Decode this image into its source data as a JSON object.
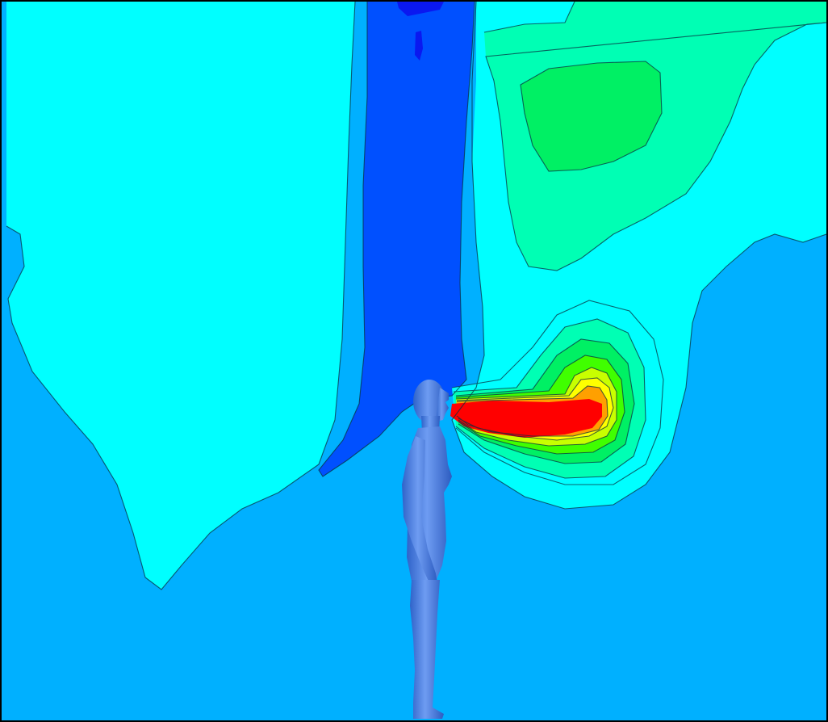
{
  "image": {
    "subject": "cfd-contour-plot-human-exhalation",
    "colors": {
      "background_flow": "#00b0ff",
      "low_band": "#00ffff",
      "mid_band": "#00ffb4",
      "mid_high_band": "#00f064",
      "lowest_band": "#0050ff",
      "deep_low": "#0a18f0",
      "green_band": "#40ff00",
      "yellow_green_band": "#c8ff00",
      "yellow_band": "#ffff00",
      "orange_band": "#ffa000",
      "red_band": "#ff0000",
      "mannequin": "#4a82e6",
      "contour_line": "#0a3040",
      "frame_border": "#000000"
    }
  }
}
